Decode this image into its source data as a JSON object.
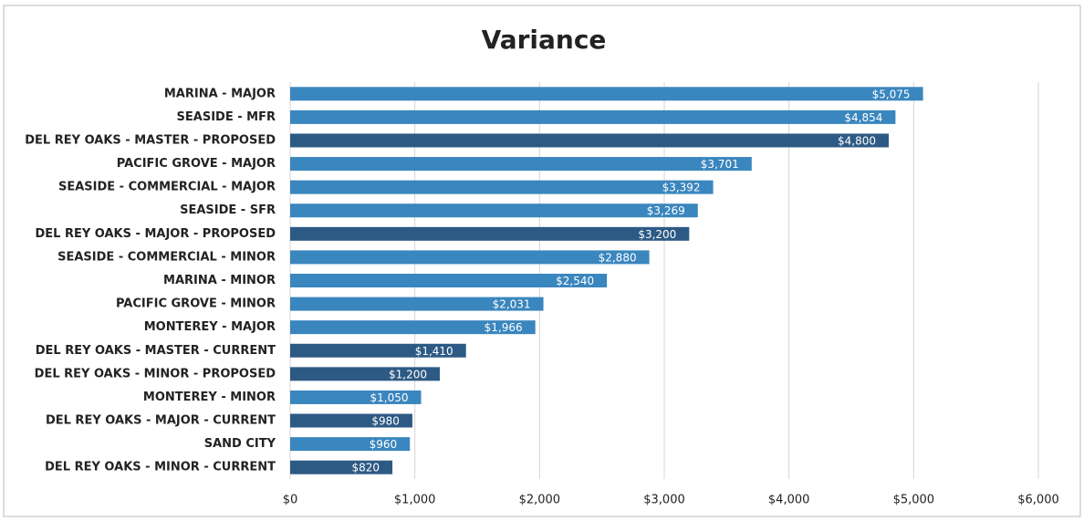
{
  "chart_data": {
    "type": "barh",
    "title": "Variance",
    "categories": [
      "MARINA - MAJOR",
      "SEASIDE - MFR",
      "DEL REY OAKS - MASTER - PROPOSED",
      "PACIFIC GROVE - MAJOR",
      "SEASIDE - COMMERCIAL - MAJOR",
      "SEASIDE - SFR",
      "DEL REY OAKS - MAJOR - PROPOSED",
      "SEASIDE - COMMERCIAL - MINOR",
      "MARINA - MINOR",
      "PACIFIC GROVE - MINOR",
      "MONTEREY - MAJOR",
      "DEL REY OAKS - MASTER - CURRENT",
      "DEL REY OAKS - MINOR - PROPOSED",
      "MONTEREY - MINOR",
      "DEL REY OAKS - MAJOR - CURRENT",
      "SAND CITY",
      "DEL REY OAKS - MINOR - CURRENT"
    ],
    "values": [
      5075,
      4854,
      4800,
      3701,
      3392,
      3269,
      3200,
      2880,
      2540,
      2031,
      1966,
      1410,
      1200,
      1050,
      980,
      960,
      820
    ],
    "value_labels": [
      "$5,075",
      "$4,854",
      "$4,800",
      "$3,701",
      "$3,392",
      "$3,269",
      "$3,200",
      "$2,880",
      "$2,540",
      "$2,031",
      "$1,966",
      "$1,410",
      "$1,200",
      "$1,050",
      "$980",
      "$960",
      "$820"
    ],
    "colors": [
      "#3a86be",
      "#3a86be",
      "#2d5a84",
      "#3a86be",
      "#3a86be",
      "#3a86be",
      "#2d5a84",
      "#3a86be",
      "#3a86be",
      "#3a86be",
      "#3a86be",
      "#2d5a84",
      "#2d5a84",
      "#3a86be",
      "#2d5a84",
      "#3a86be",
      "#2d5a84"
    ],
    "xlim": [
      0,
      6000
    ],
    "xticks": [
      {
        "value": 0,
        "label": "$0"
      },
      {
        "value": 1000,
        "label": "$1,000"
      },
      {
        "value": 2000,
        "label": "$2,000"
      },
      {
        "value": 3000,
        "label": "$3,000"
      },
      {
        "value": 4000,
        "label": "$4,000"
      },
      {
        "value": 5000,
        "label": "$5,000"
      },
      {
        "value": 6000,
        "label": "$6,000"
      }
    ],
    "grid": true
  }
}
